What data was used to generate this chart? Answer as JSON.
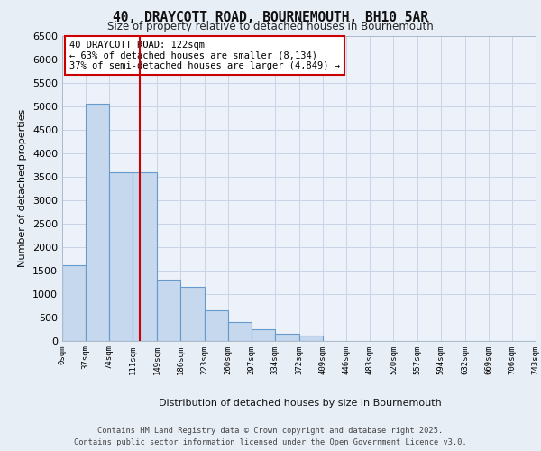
{
  "title_line1": "40, DRAYCOTT ROAD, BOURNEMOUTH, BH10 5AR",
  "title_line2": "Size of property relative to detached houses in Bournemouth",
  "xlabel": "Distribution of detached houses by size in Bournemouth",
  "ylabel": "Number of detached properties",
  "footer_line1": "Contains HM Land Registry data © Crown copyright and database right 2025.",
  "footer_line2": "Contains public sector information licensed under the Open Government Licence v3.0.",
  "annotation_line1": "40 DRAYCOTT ROAD: 122sqm",
  "annotation_line2": "← 63% of detached houses are smaller (8,134)",
  "annotation_line3": "37% of semi-detached houses are larger (4,849) →",
  "property_size": 122,
  "bin_edges": [
    0,
    37,
    74,
    111,
    149,
    186,
    223,
    260,
    297,
    334,
    372,
    409,
    446,
    483,
    520,
    557,
    594,
    632,
    669,
    706,
    743
  ],
  "bar_heights": [
    1600,
    5050,
    3600,
    3600,
    1300,
    1150,
    650,
    400,
    250,
    150,
    100,
    0,
    0,
    0,
    0,
    0,
    0,
    0,
    0,
    0
  ],
  "bar_color": "#c5d8ed",
  "bar_edgecolor": "#6699cc",
  "vline_color": "#cc0000",
  "vline_x": 122,
  "ylim": [
    0,
    6500
  ],
  "yticks": [
    0,
    500,
    1000,
    1500,
    2000,
    2500,
    3000,
    3500,
    4000,
    4500,
    5000,
    5500,
    6000,
    6500
  ],
  "annotation_box_edgecolor": "#cc0000",
  "annotation_box_facecolor": "#ffffff",
  "background_color": "#e8eef6",
  "plot_background": "#edf2fa",
  "grid_color": "#c8d4e8"
}
